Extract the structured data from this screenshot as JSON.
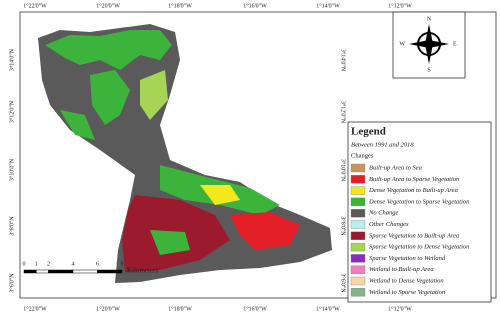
{
  "map": {
    "longitude_labels_top": [
      "1°22'0\"W",
      "1°20'0\"W",
      "1°18'0\"W",
      "1°16'0\"W",
      "1°14'0\"W",
      "1°12'0\"W"
    ],
    "longitude_labels_bottom": [
      "1°22'0\"W",
      "1°20'0\"W",
      "1°18'0\"W",
      "1°16'0\"W",
      "1°14'0\"W",
      "1°12'0\"W"
    ],
    "latitude_labels_left": [
      "3°14'0\"N",
      "3°12'0\"N",
      "3°10'0\"N",
      "3°8'0\"N",
      "3°6'0\"N"
    ],
    "latitude_labels_right": [
      "3°14'0\"N",
      "3°12'0\"N",
      "3°10'0\"N",
      "3°8'0\"N",
      "3°6'0\"N"
    ],
    "compass": {
      "north": "N",
      "east": "E",
      "south": "S",
      "west": "W"
    },
    "scale_bar": {
      "ticks": [
        0,
        1,
        2,
        4,
        6,
        8
      ],
      "unit": "Kilometers"
    },
    "legend": {
      "title": "Legend",
      "subtitle": "Between 1991 and 2018",
      "heading": "Changes",
      "items": [
        {
          "label": "Built-up Area to Sea",
          "color": "#c8955f"
        },
        {
          "label": "Built-up Area to Sparse Vegetation",
          "color": "#e41e26"
        },
        {
          "label": "Dense Vegetation to Built-up Area",
          "color": "#f2e81c"
        },
        {
          "label": "Dense Vegetation to Sparse Vegetation",
          "color": "#3cb43c"
        },
        {
          "label": "No Change",
          "color": "#5a5a5a"
        },
        {
          "label": "Other Changes",
          "color": "#b8f0f0"
        },
        {
          "label": "Sparse Vegetation to Built-up Area",
          "color": "#9c1a2e"
        },
        {
          "label": "Sparse Vegetation to Dense Vegetation",
          "color": "#a6d455"
        },
        {
          "label": "Sparse Vegetation to Wetland",
          "color": "#8a2cc0"
        },
        {
          "label": "Wetland to Built-up Area",
          "color": "#f07ec0"
        },
        {
          "label": "Wetland to Dense Vegetation",
          "color": "#f0d8a8"
        },
        {
          "label": "Wetland to Sparse Vegetation",
          "color": "#84b488"
        }
      ]
    }
  }
}
